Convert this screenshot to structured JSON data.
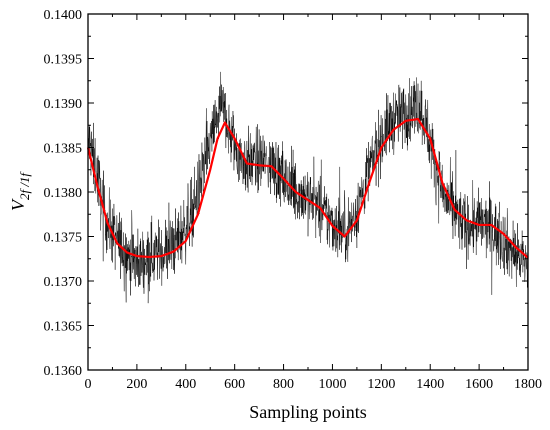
{
  "chart_data": {
    "type": "line",
    "xlabel": "Sampling points",
    "ylabel": "V2f/1f",
    "ylabel_parts": {
      "main": "V",
      "sub": "2f /1f"
    },
    "xlim": [
      0,
      1800
    ],
    "ylim": [
      0.136,
      0.14
    ],
    "xticks": [
      0,
      200,
      400,
      600,
      800,
      1000,
      1200,
      1400,
      1600,
      1800
    ],
    "yticks": [
      0.136,
      0.1365,
      0.137,
      0.1375,
      0.138,
      0.1385,
      0.139,
      0.1395,
      0.14
    ],
    "ytick_labels": [
      "0.1360",
      "0.1365",
      "0.1370",
      "0.1375",
      "0.1380",
      "0.1385",
      "0.1390",
      "0.1395",
      "0.1400"
    ],
    "grid": false,
    "legend": "none",
    "series": [
      {
        "color": "#000000",
        "style": "noisy raw signal",
        "x": [
          0,
          20,
          40,
          60,
          80,
          100,
          120,
          150,
          200,
          250,
          300,
          350,
          400,
          450,
          500,
          540,
          560,
          580,
          620,
          650,
          700,
          750,
          800,
          850,
          900,
          950,
          1000,
          1050,
          1080,
          1100,
          1150,
          1200,
          1250,
          1300,
          1350,
          1380,
          1400,
          1450,
          1500,
          1550,
          1600,
          1650,
          1700,
          1750,
          1800
        ],
        "y": [
          0.1386,
          0.1384,
          0.13815,
          0.13785,
          0.13765,
          0.13755,
          0.13745,
          0.13735,
          0.1372,
          0.13728,
          0.13732,
          0.1374,
          0.1376,
          0.138,
          0.13855,
          0.13895,
          0.1389,
          0.13865,
          0.1384,
          0.13832,
          0.13835,
          0.13832,
          0.13812,
          0.138,
          0.13795,
          0.1378,
          0.13765,
          0.13755,
          0.13765,
          0.1378,
          0.13825,
          0.1386,
          0.13882,
          0.13888,
          0.139,
          0.1388,
          0.13855,
          0.138,
          0.13775,
          0.1376,
          0.13765,
          0.1376,
          0.13745,
          0.1373,
          0.1372
        ]
      },
      {
        "color": "#ff0000",
        "style": "smoothed fit",
        "x": [
          0,
          40,
          80,
          120,
          160,
          200,
          250,
          300,
          350,
          400,
          450,
          500,
          530,
          560,
          600,
          650,
          700,
          750,
          800,
          850,
          900,
          950,
          1000,
          1050,
          1100,
          1150,
          1200,
          1250,
          1300,
          1350,
          1400,
          1450,
          1500,
          1550,
          1600,
          1650,
          1700,
          1750,
          1800
        ],
        "y": [
          0.1385,
          0.13805,
          0.13765,
          0.13742,
          0.13732,
          0.13728,
          0.13727,
          0.13728,
          0.13733,
          0.13745,
          0.13775,
          0.13825,
          0.1386,
          0.13878,
          0.1386,
          0.13832,
          0.1383,
          0.13829,
          0.13815,
          0.138,
          0.13791,
          0.13782,
          0.13762,
          0.1375,
          0.13768,
          0.1381,
          0.1385,
          0.1387,
          0.1388,
          0.13882,
          0.1386,
          0.1381,
          0.1378,
          0.13768,
          0.13763,
          0.13763,
          0.13753,
          0.13738,
          0.13726
        ]
      }
    ]
  }
}
